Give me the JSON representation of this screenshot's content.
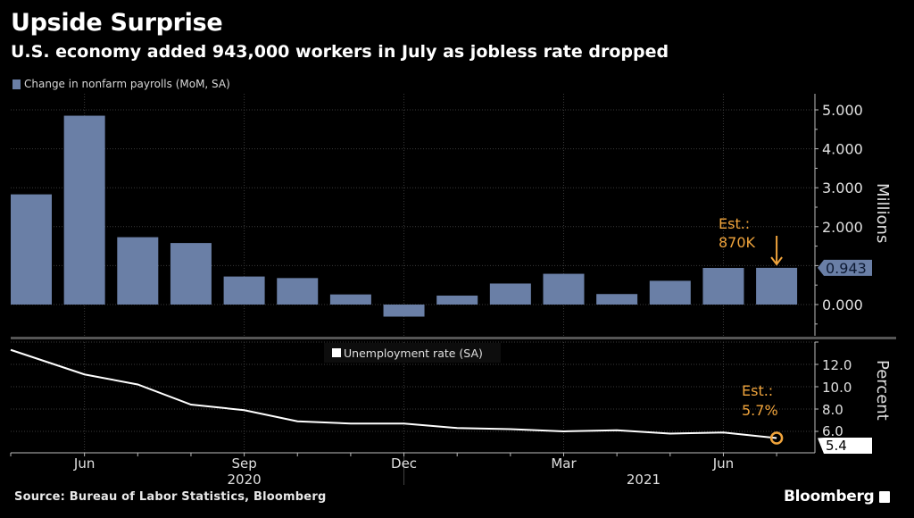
{
  "header": {
    "title": "Upside Surprise",
    "subtitle": "U.S. economy added 943,000 workers in July as jobless rate dropped"
  },
  "footer": {
    "source": "Source: Bureau of Labor Statistics, Bloomberg",
    "brand": "Bloomberg"
  },
  "colors": {
    "bar": "#6a7fa6",
    "line": "#ffffff",
    "annotation": "#f0a43c",
    "background": "#000000"
  },
  "chart_data": [
    {
      "type": "bar",
      "title": "Change in nonfarm payrolls (MoM, SA)",
      "legend": "Change in nonfarm payrolls (MoM, SA)",
      "legend_position": "top-left",
      "ylabel": "Millions",
      "ylim": [
        -0.45,
        5.4
      ],
      "yticks": [
        "0.000",
        "1.000",
        "2.000",
        "3.000",
        "4.000",
        "5.000"
      ],
      "ytick_values": [
        0,
        1,
        2,
        3,
        4,
        5
      ],
      "yticks_labeled": [
        "0.000",
        "2.000",
        "3.000",
        "4.000",
        "5.000"
      ],
      "grid": true,
      "categories": [
        "May 2020",
        "Jun 2020",
        "Jul 2020",
        "Aug 2020",
        "Sep 2020",
        "Oct 2020",
        "Nov 2020",
        "Dec 2020",
        "Jan 2021",
        "Feb 2021",
        "Mar 2021",
        "Apr 2021",
        "May 2021",
        "Jun 2021",
        "Jul 2021"
      ],
      "values": [
        2.83,
        4.85,
        1.73,
        1.58,
        0.72,
        0.68,
        0.26,
        -0.31,
        0.23,
        0.54,
        0.79,
        0.27,
        0.61,
        0.94,
        0.943
      ],
      "last_value_label": "0.943",
      "annotation": {
        "line1": "Est.:",
        "line2": "870K",
        "target": "Jul 2021",
        "value": 0.87
      }
    },
    {
      "type": "line",
      "title": "Unemployment rate (SA)",
      "legend": "Unemployment rate (SA)",
      "legend_position": "top-center",
      "ylabel": "Percent",
      "ylim": [
        4.1,
        14.0
      ],
      "yticks": [
        "6.0",
        "8.0",
        "10.0",
        "12.0"
      ],
      "ytick_values": [
        6,
        8,
        10,
        12
      ],
      "grid": true,
      "x": [
        "May 2020",
        "Jun 2020",
        "Jul 2020",
        "Aug 2020",
        "Sep 2020",
        "Oct 2020",
        "Nov 2020",
        "Dec 2020",
        "Jan 2021",
        "Feb 2021",
        "Mar 2021",
        "Apr 2021",
        "May 2021",
        "Jun 2021",
        "Jul 2021"
      ],
      "values": [
        13.3,
        11.1,
        10.2,
        8.4,
        7.9,
        6.9,
        6.7,
        6.7,
        6.3,
        6.2,
        6.0,
        6.1,
        5.8,
        5.9,
        5.4
      ],
      "last_value_label": "5.4",
      "annotation": {
        "line1": "Est.:",
        "line2": "5.7%",
        "target": "Jul 2021",
        "value": 5.7
      }
    }
  ],
  "xaxis": {
    "month_labels": [
      {
        "label": "Jun",
        "index": 1
      },
      {
        "label": "Sep",
        "index": 4
      },
      {
        "label": "Dec",
        "index": 7
      },
      {
        "label": "Mar",
        "index": 10
      },
      {
        "label": "Jun",
        "index": 13
      }
    ],
    "year_labels": [
      {
        "label": "2020",
        "index": 4
      },
      {
        "label": "2021",
        "index": 11.5
      }
    ]
  }
}
